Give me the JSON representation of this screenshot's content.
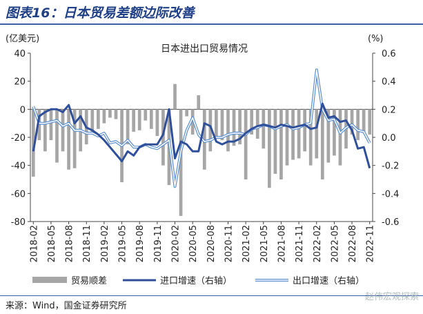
{
  "header": {
    "title": "图表16：日本贸易差额边际改善"
  },
  "footer": {
    "source": "来源：Wind，国金证券研究所",
    "watermark": "赵伟宏观探索"
  },
  "colors": {
    "bar": "#a6a6a6",
    "import_line": "#2f4f9a",
    "export_line": "#5b8fd0",
    "title": "#1f3f86"
  },
  "chart_data": {
    "type": "bar+line",
    "title": "日本进出口贸易情况",
    "left_axis": {
      "unit": "(亿美元)",
      "ylim": [
        -80,
        40
      ],
      "ticks": [
        40,
        20,
        0,
        -20,
        -40,
        -60,
        -80
      ]
    },
    "right_axis": {
      "unit": "(%)",
      "ylim": [
        -0.6,
        0.6
      ],
      "ticks": [
        "0.6",
        "0.4",
        "0.2",
        "0.0",
        "-0.2",
        "-0.4",
        "-0.6"
      ]
    },
    "x_tick_labels": [
      "2018-02",
      "2018-05",
      "2018-08",
      "2018-11",
      "2019-02",
      "2019-05",
      "2019-08",
      "2019-11",
      "2020-02",
      "2020-05",
      "2020-08",
      "2020-11",
      "2021-02",
      "2021-05",
      "2021-08",
      "2021-11",
      "2022-02",
      "2022-05",
      "2022-08",
      "2022-11"
    ],
    "months": [
      "2018-02",
      "2018-03",
      "2018-04",
      "2018-05",
      "2018-06",
      "2018-07",
      "2018-08",
      "2018-09",
      "2018-10",
      "2018-11",
      "2018-12",
      "2019-01",
      "2019-02",
      "2019-03",
      "2019-04",
      "2019-05",
      "2019-06",
      "2019-07",
      "2019-08",
      "2019-09",
      "2019-10",
      "2019-11",
      "2019-12",
      "2020-01",
      "2020-02",
      "2020-03",
      "2020-04",
      "2020-05",
      "2020-06",
      "2020-07",
      "2020-08",
      "2020-09",
      "2020-10",
      "2020-11",
      "2020-12",
      "2021-01",
      "2021-02",
      "2021-03",
      "2021-04",
      "2021-05",
      "2021-06",
      "2021-07",
      "2021-08",
      "2021-09",
      "2021-10",
      "2021-11",
      "2021-12",
      "2022-01",
      "2022-02",
      "2022-03",
      "2022-04",
      "2022-05",
      "2022-06",
      "2022-07",
      "2022-08",
      "2022-09",
      "2022-10",
      "2022-11"
    ],
    "series": [
      {
        "name": "贸易顺差",
        "type": "bar",
        "axis": "left",
        "values": [
          -48,
          -22,
          -30,
          -22,
          -38,
          -30,
          -43,
          -42,
          -30,
          -25,
          -18,
          -14,
          -10,
          -6,
          -7,
          -52,
          -25,
          -16,
          -15,
          -8,
          -14,
          -19,
          -40,
          -54,
          18,
          -76,
          -5,
          -18,
          10,
          -43,
          -30,
          -20,
          -22,
          -30,
          -26,
          -25,
          -50,
          -18,
          -21,
          -28,
          -56,
          -46,
          -50,
          -40,
          -36,
          -35,
          -30,
          -40,
          -35,
          -50,
          -38,
          -33,
          -40,
          -28,
          -18,
          -22,
          -16,
          -18
        ]
      },
      {
        "name": "进口增速（右轴）",
        "type": "line",
        "axis": "right",
        "values": [
          -0.1,
          0.15,
          0.18,
          0.2,
          0.2,
          0.18,
          0.23,
          0.1,
          0.15,
          0.07,
          0.05,
          0.02,
          -0.02,
          -0.07,
          -0.12,
          -0.17,
          -0.1,
          -0.13,
          -0.07,
          -0.05,
          -0.05,
          -0.05,
          0.02,
          0.2,
          -0.15,
          -0.03,
          -0.05,
          -0.1,
          -0.1,
          0.1,
          0.08,
          -0.03,
          -0.05,
          -0.03,
          -0.03,
          -0.01,
          0.03,
          0.06,
          0.08,
          0.09,
          0.08,
          0.07,
          0.09,
          0.08,
          0.07,
          0.08,
          0.09,
          0.06,
          0.07,
          0.24,
          0.14,
          0.15,
          0.11,
          0.12,
          0.05,
          -0.08,
          -0.07,
          -0.22
        ]
      },
      {
        "name": "出口增速（右轴）",
        "type": "line",
        "axis": "right",
        "values": [
          0.22,
          0.1,
          0.1,
          0.11,
          0.12,
          0.08,
          0.1,
          0.05,
          0.05,
          0.03,
          0.03,
          0.01,
          0.03,
          -0.04,
          -0.03,
          -0.06,
          -0.02,
          -0.07,
          -0.07,
          -0.05,
          -0.07,
          -0.08,
          -0.05,
          -0.02,
          -0.35,
          -0.1,
          0.05,
          0.14,
          0.02,
          -0.03,
          -0.02,
          0.0,
          0.0,
          0.02,
          0.03,
          0.03,
          0.02,
          0.06,
          0.07,
          0.09,
          0.08,
          0.06,
          0.08,
          0.09,
          0.06,
          0.07,
          0.09,
          0.1,
          0.48,
          0.2,
          0.12,
          0.13,
          0.03,
          0.07,
          0.09,
          0.05,
          0.04,
          -0.04
        ]
      }
    ],
    "legend": {
      "position": "bottom"
    },
    "grid": false
  }
}
